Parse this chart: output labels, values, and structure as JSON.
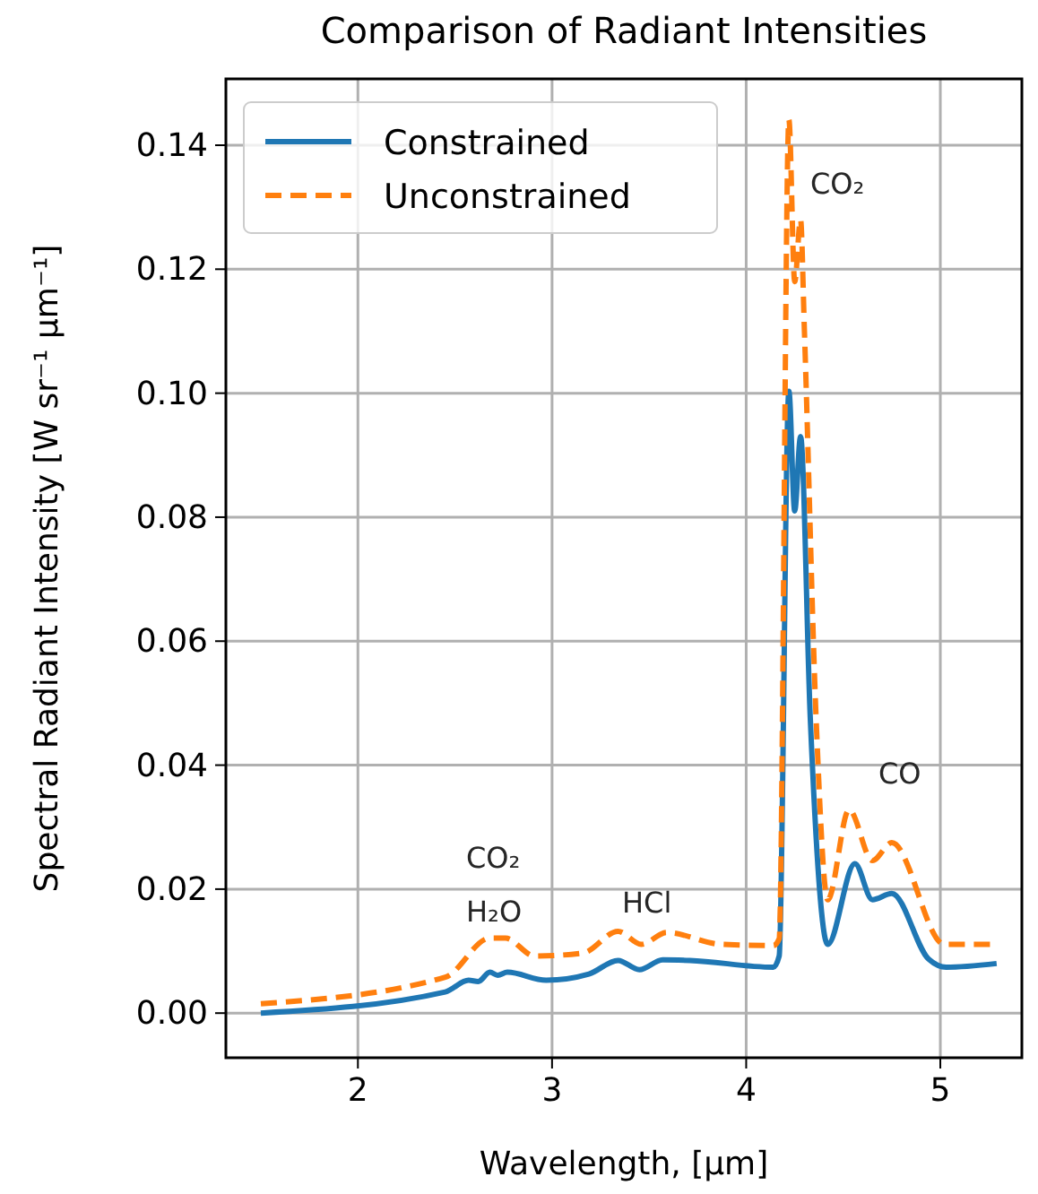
{
  "chart_data": {
    "type": "line",
    "title": "Comparison of Radiant Intensities",
    "xlabel": "Wavelength, [μm]",
    "ylabel": "Spectral Radiant Intensity [W sr⁻¹ μm⁻¹]",
    "xlim": [
      1.32,
      5.42
    ],
    "ylim": [
      -0.0072,
      0.1507
    ],
    "xticks": [
      2,
      3,
      4,
      5
    ],
    "yticks": [
      {
        "value": 0,
        "label": "0.00"
      },
      {
        "value": 0.02,
        "label": "0.02"
      },
      {
        "value": 0.04,
        "label": "0.04"
      },
      {
        "value": 0.06,
        "label": "0.06"
      },
      {
        "value": 0.08,
        "label": "0.08"
      },
      {
        "value": 0.1,
        "label": "0.10"
      },
      {
        "value": 0.12,
        "label": "0.12"
      },
      {
        "value": 0.14,
        "label": "0.14"
      }
    ],
    "grid": true,
    "legend": "top left",
    "marker": "none",
    "series": [
      {
        "name": "Constrained",
        "color": "#1f77b4",
        "line_style": "solid",
        "x": [
          1.5,
          2.45,
          2.57,
          2.62,
          2.68,
          2.72,
          2.77,
          2.97,
          3.19,
          3.34,
          3.45,
          3.57,
          3.71,
          4.14,
          4.17,
          4.22,
          4.25,
          4.28,
          4.33,
          4.42,
          4.56,
          4.65,
          4.75,
          4.94,
          5.03,
          5.29
        ],
        "values": [
          0,
          0.0034,
          0.0053,
          0.0051,
          0.0066,
          0.0061,
          0.0066,
          0.0053,
          0.0063,
          0.0085,
          0.007,
          0.0086,
          0.0085,
          0.0074,
          0.0092,
          0.1003,
          0.081,
          0.093,
          0.0477,
          0.0111,
          0.0241,
          0.0183,
          0.0193,
          0.0087,
          0.0074,
          0.008
        ]
      },
      {
        "name": "Unconstrained",
        "color": "#ff7f0e",
        "line_style": "dashed",
        "x": [
          1.5,
          2.45,
          2.68,
          2.76,
          2.91,
          3.16,
          3.34,
          3.46,
          3.59,
          3.87,
          4.14,
          4.17,
          4.22,
          4.25,
          4.28,
          4.3,
          4.36,
          4.42,
          4.53,
          4.65,
          4.75,
          5.02,
          5.29
        ],
        "values": [
          0.0015,
          0.0058,
          0.0121,
          0.0121,
          0.0092,
          0.0097,
          0.0132,
          0.0111,
          0.013,
          0.0111,
          0.0109,
          0.012,
          0.1441,
          0.118,
          0.128,
          0.11,
          0.0477,
          0.0183,
          0.0328,
          0.0246,
          0.0275,
          0.0111,
          0.0111
        ]
      }
    ],
    "annotations": [
      "CO₂",
      "CO₂",
      "H₂O",
      "HCl",
      "CO"
    ]
  }
}
